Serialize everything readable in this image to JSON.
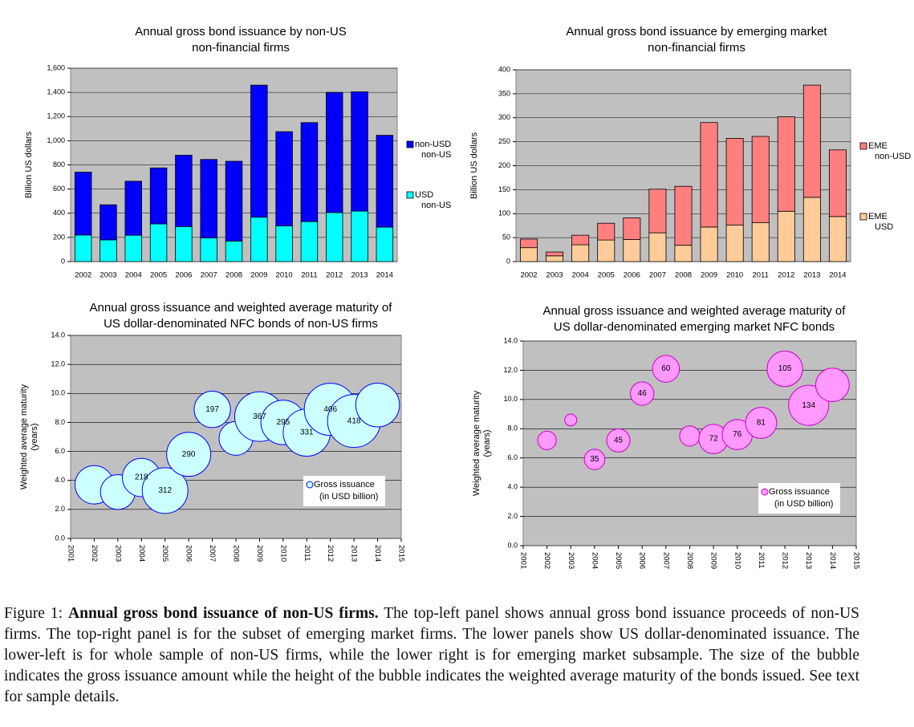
{
  "chart_data": [
    {
      "type": "bar",
      "stacked": true,
      "title": [
        "Annual gross bond issuance by non-US",
        "non-financial firms"
      ],
      "ylabel": [
        "Billion US dollars"
      ],
      "categories": [
        "2002",
        "2003",
        "2004",
        "2005",
        "2006",
        "2007",
        "2008",
        "2009",
        "2010",
        "2011",
        "2012",
        "2013",
        "2014"
      ],
      "series": [
        {
          "name": "USD non-US",
          "color": "#00ffff",
          "values": [
            220,
            180,
            218,
            312,
            290,
            197,
            170,
            367,
            295,
            331,
            406,
            418,
            285
          ]
        },
        {
          "name": "non-USD non-US",
          "color": "#0000ff",
          "values": [
            520,
            290,
            447,
            463,
            590,
            648,
            660,
            1093,
            780,
            819,
            994,
            987,
            760
          ]
        }
      ],
      "ylim": [
        0,
        1600
      ],
      "yticks": [
        0,
        200,
        400,
        600,
        800,
        {
          "value": 1000,
          "label": "1,000"
        },
        {
          "value": 1200,
          "label": "1,200"
        },
        {
          "value": 1400,
          "label": "1,400"
        },
        {
          "value": 1600,
          "label": "1,600"
        }
      ],
      "grid": true,
      "legend": "right"
    },
    {
      "type": "bar",
      "stacked": true,
      "title": [
        "Annual gross bond issuance by emerging market",
        "non-financial firms"
      ],
      "ylabel": [
        "Billion US dollars"
      ],
      "categories": [
        "2002",
        "2003",
        "2004",
        "2005",
        "2006",
        "2007",
        "2008",
        "2009",
        "2010",
        "2011",
        "2012",
        "2013",
        "2014"
      ],
      "series": [
        {
          "name": "EME USD",
          "color": "#ffcc99",
          "values": [
            29,
            12,
            35,
            45,
            46,
            60,
            34,
            72,
            76,
            81,
            105,
            134,
            94
          ]
        },
        {
          "name": "EME non-USD",
          "color": "#ff7f7f",
          "values": [
            18,
            8,
            20,
            35,
            45,
            91,
            123,
            218,
            181,
            180,
            197,
            234,
            139
          ]
        }
      ],
      "ylim": [
        0,
        400
      ],
      "yticks": [
        0,
        50,
        100,
        150,
        200,
        250,
        300,
        350,
        400
      ],
      "grid": true,
      "legend": "right"
    },
    {
      "type": "bubble",
      "title": [
        "Annual gross issuance and weighted average maturity of",
        "US dollar-denominated NFC bonds of non-US firms"
      ],
      "ylabel": [
        "Weighted average maturity",
        "(years)"
      ],
      "x": [
        2002,
        2003,
        2004,
        2005,
        2006,
        2007,
        2008,
        2009,
        2010,
        2011,
        2012,
        2013,
        2014
      ],
      "series": [
        {
          "name": "Gross issuance (in USD billion)",
          "color": "#ccffff",
          "edgecolor": "#0000ff",
          "values": [
            3.7,
            3.2,
            4.2,
            3.3,
            5.8,
            8.9,
            6.9,
            8.4,
            8.0,
            7.3,
            8.9,
            8.1,
            9.2
          ],
          "sizes": [
            220,
            180,
            218,
            312,
            290,
            197,
            170,
            367,
            295,
            331,
            406,
            418,
            285
          ],
          "value_labels": [
            null,
            null,
            "218",
            "312",
            "290",
            "197",
            null,
            "367",
            "295",
            "331",
            "406",
            "418",
            null
          ]
        }
      ],
      "xlim": [
        2001,
        2015
      ],
      "xticks": [
        2001,
        2002,
        2003,
        2004,
        2005,
        2006,
        2007,
        2008,
        2009,
        2010,
        2011,
        2012,
        2013,
        2014,
        2015
      ],
      "ylim": [
        0,
        14
      ],
      "yticks": [
        {
          "value": 0,
          "label": "0.0"
        },
        {
          "value": 2,
          "label": "2.0"
        },
        {
          "value": 4,
          "label": "4.0"
        },
        {
          "value": 6,
          "label": "6.0"
        },
        {
          "value": 8,
          "label": "8.0"
        },
        {
          "value": 10,
          "label": "10.0"
        },
        {
          "value": 12,
          "label": "12.0"
        },
        {
          "value": 14,
          "label": "14.0"
        }
      ],
      "grid": true,
      "legend": "lower right"
    },
    {
      "type": "bubble",
      "title": [
        "Annual gross issuance and weighted average maturity of",
        "US dollar-denominated emerging market NFC bonds"
      ],
      "ylabel": [
        "Weighted average maturity",
        "(years)"
      ],
      "x": [
        2002,
        2003,
        2004,
        2005,
        2006,
        2007,
        2008,
        2009,
        2010,
        2011,
        2012,
        2013,
        2014
      ],
      "series": [
        {
          "name": "Gross issuance (in USD billion)",
          "color": "#ff99ff",
          "edgecolor": "#cc00cc",
          "values": [
            7.2,
            8.6,
            5.9,
            7.2,
            10.4,
            12.1,
            7.5,
            7.3,
            7.6,
            8.4,
            12.1,
            9.6,
            11.0
          ],
          "sizes": [
            29,
            12,
            35,
            45,
            46,
            60,
            34,
            72,
            76,
            81,
            105,
            134,
            94
          ],
          "value_labels": [
            null,
            null,
            "35",
            "45",
            "46",
            "60",
            null,
            "72",
            "76",
            "81",
            "105",
            "134",
            null
          ]
        }
      ],
      "xlim": [
        2001,
        2015
      ],
      "xticks": [
        2001,
        2002,
        2003,
        2004,
        2005,
        2006,
        2007,
        2008,
        2009,
        2010,
        2011,
        2012,
        2013,
        2014,
        2015
      ],
      "ylim": [
        0,
        14
      ],
      "yticks": [
        {
          "value": 0,
          "label": "0.0"
        },
        {
          "value": 2,
          "label": "2.0"
        },
        {
          "value": 4,
          "label": "4.0"
        },
        {
          "value": 6,
          "label": "6.0"
        },
        {
          "value": 8,
          "label": "8.0"
        },
        {
          "value": 10,
          "label": "10.0"
        },
        {
          "value": 12,
          "label": "12.0"
        },
        {
          "value": 14,
          "label": "14.0"
        }
      ],
      "grid": true,
      "legend": "lower right"
    }
  ],
  "caption": {
    "label": "Figure 1:",
    "title": "Annual gross bond issuance of non-US firms.",
    "text": "The top-left panel shows annual gross bond issuance proceeds of non-US firms. The top-right panel is for the subset of emerging market firms. The lower panels show US dollar-denominated issuance. The lower-left is for whole sample of non-US firms, while the lower right is for emerging market subsample. The size of the bubble indicates the gross issuance amount while the height of the bubble indicates the weighted average maturity of the bonds issued. See text for sample details."
  }
}
